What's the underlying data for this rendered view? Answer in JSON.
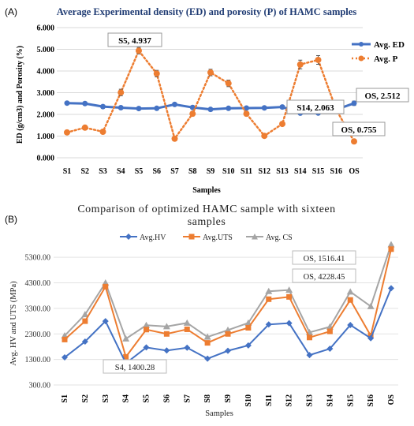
{
  "chart_data": [
    {
      "panel": "(A)",
      "type": "line",
      "title": "Average Experimental density (ED) and porosity (P) of HAMC samples",
      "xlabel": "Samples",
      "ylabel": "ED (g/cm3) and Porosity (%)",
      "ylim": [
        0,
        6
      ],
      "yticks": [
        "0.000",
        "1.000",
        "2.000",
        "3.000",
        "4.000",
        "5.000",
        "6.000"
      ],
      "categories": [
        "S1",
        "S2",
        "S3",
        "S4",
        "S5",
        "S6",
        "S7",
        "S8",
        "S9",
        "S10",
        "S11",
        "S12",
        "S13",
        "S14",
        "S15",
        "S16",
        "OS"
      ],
      "legend_position": "right",
      "grid": "horizontal",
      "series": [
        {
          "name": "Avg. ED",
          "color": "#4472c4",
          "style": "solid",
          "values": [
            2.52,
            2.5,
            2.36,
            2.31,
            2.27,
            2.28,
            2.46,
            2.32,
            2.23,
            2.28,
            2.29,
            2.3,
            2.34,
            2.06,
            2.063,
            2.22,
            2.512
          ],
          "errors": [
            0.05,
            0.04,
            0.04,
            0.04,
            0.04,
            0.04,
            0.05,
            0.04,
            0.04,
            0.04,
            0.04,
            0.04,
            0.04,
            0.04,
            0.04,
            0.05,
            0.1
          ]
        },
        {
          "name": "Avg. P",
          "color": "#ed7d31",
          "style": "dotted",
          "values": [
            1.17,
            1.39,
            1.2,
            3.01,
            4.937,
            3.88,
            0.88,
            2.03,
            3.93,
            3.43,
            2.03,
            1.01,
            1.56,
            4.3,
            4.51,
            2.23,
            0.755
          ],
          "errors": [
            0.05,
            0.05,
            0.05,
            0.15,
            0.15,
            0.15,
            0.05,
            0.1,
            0.15,
            0.15,
            0.1,
            0.05,
            0.05,
            0.2,
            0.2,
            0.1,
            0.05
          ]
        }
      ],
      "annotations": [
        {
          "text": "S5, 4.937"
        },
        {
          "text": "S14, 2.063"
        },
        {
          "text": "OS, 2.512"
        },
        {
          "text": "OS, 0.755"
        }
      ]
    },
    {
      "panel": "(B)",
      "type": "line",
      "title": "Comparison of optimized HAMC sample with sixteen samples",
      "xlabel": "Samples",
      "ylabel": "Avg. HV and UTS (MPa)",
      "ylim": [
        300,
        5800
      ],
      "yticks": [
        "300.00",
        "1300.00",
        "2300.00",
        "3300.00",
        "4300.00",
        "5300.00"
      ],
      "categories": [
        "S1",
        "S2",
        "S3",
        "S4",
        "S5",
        "S6",
        "S7",
        "S8",
        "S9",
        "S10",
        "S11",
        "S12",
        "S13",
        "S14",
        "S15",
        "S16",
        "OS"
      ],
      "legend_position": "top",
      "grid": "horizontal",
      "series": [
        {
          "name": "Avg.HV",
          "color": "#4472c4",
          "marker": "diamond",
          "values": [
            1380,
            2000,
            2800,
            1150,
            1770,
            1650,
            1760,
            1330,
            1640,
            1850,
            2670,
            2720,
            1470,
            1720,
            2650,
            2130,
            4090
          ]
        },
        {
          "name": "Avg.UTS",
          "color": "#ed7d31",
          "marker": "square",
          "values": [
            2080,
            2800,
            4150,
            1400.28,
            2470,
            2300,
            2480,
            1950,
            2300,
            2540,
            3660,
            3750,
            2160,
            2400,
            3630,
            2230,
            5620
          ]
        },
        {
          "name": "Avg. CS",
          "color": "#a5a5a5",
          "marker": "triangle",
          "values": [
            2230,
            3060,
            4300,
            2110,
            2640,
            2590,
            2730,
            2180,
            2450,
            2730,
            3970,
            4020,
            2360,
            2580,
            3950,
            3380,
            5800
          ]
        }
      ],
      "annotations": [
        {
          "text": "OS, 1516.41"
        },
        {
          "text": "OS, 4228.45"
        },
        {
          "text": "S4, 1400.28"
        }
      ]
    }
  ]
}
